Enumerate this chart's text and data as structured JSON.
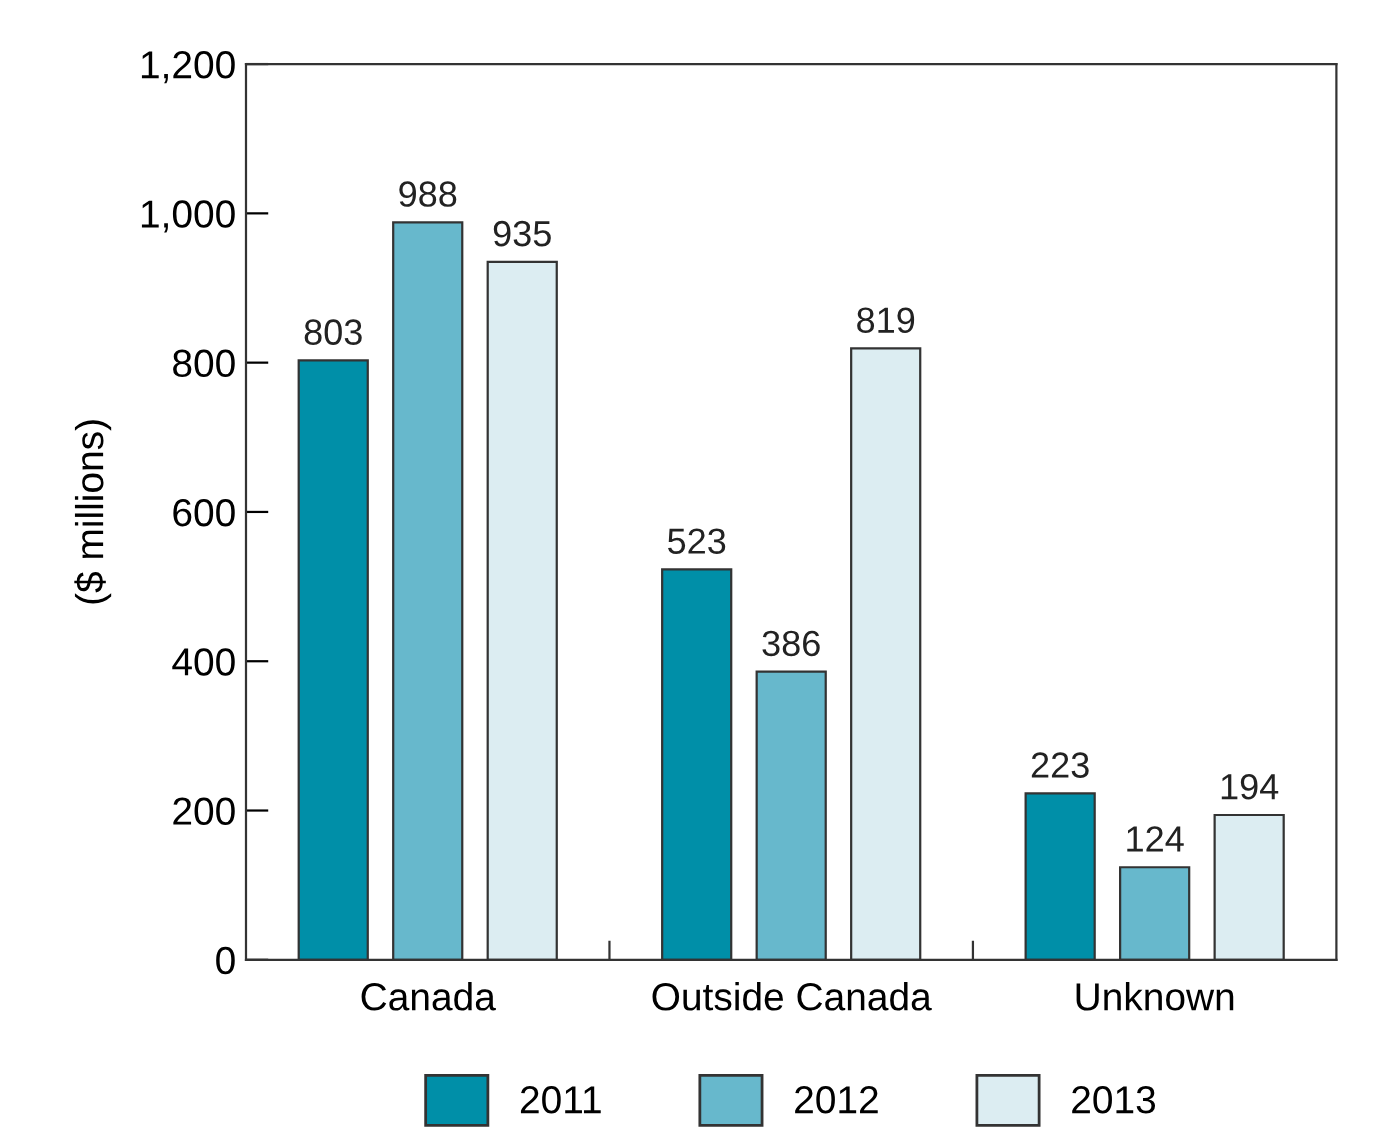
{
  "chart_data": {
    "type": "bar",
    "ylabel": "($ millions)",
    "categories": [
      "Canada",
      "Outside Canada",
      "Unknown"
    ],
    "series": [
      {
        "name": "2011",
        "color": "#008fa8",
        "values": [
          803,
          523,
          223
        ]
      },
      {
        "name": "2012",
        "color": "#67b8cc",
        "values": [
          988,
          386,
          124
        ]
      },
      {
        "name": "2013",
        "color": "#dcedf2",
        "values": [
          935,
          819,
          194
        ]
      }
    ],
    "ylim": [
      0,
      1200
    ],
    "yticks": [
      {
        "value": 0,
        "label": "0"
      },
      {
        "value": 200,
        "label": "200"
      },
      {
        "value": 400,
        "label": "400"
      },
      {
        "value": 600,
        "label": "600"
      },
      {
        "value": 800,
        "label": "800"
      },
      {
        "value": 1000,
        "label": "1,000"
      },
      {
        "value": 1200,
        "label": "1,200"
      }
    ],
    "data_labels": true,
    "legend": "bottom",
    "grid": false
  }
}
